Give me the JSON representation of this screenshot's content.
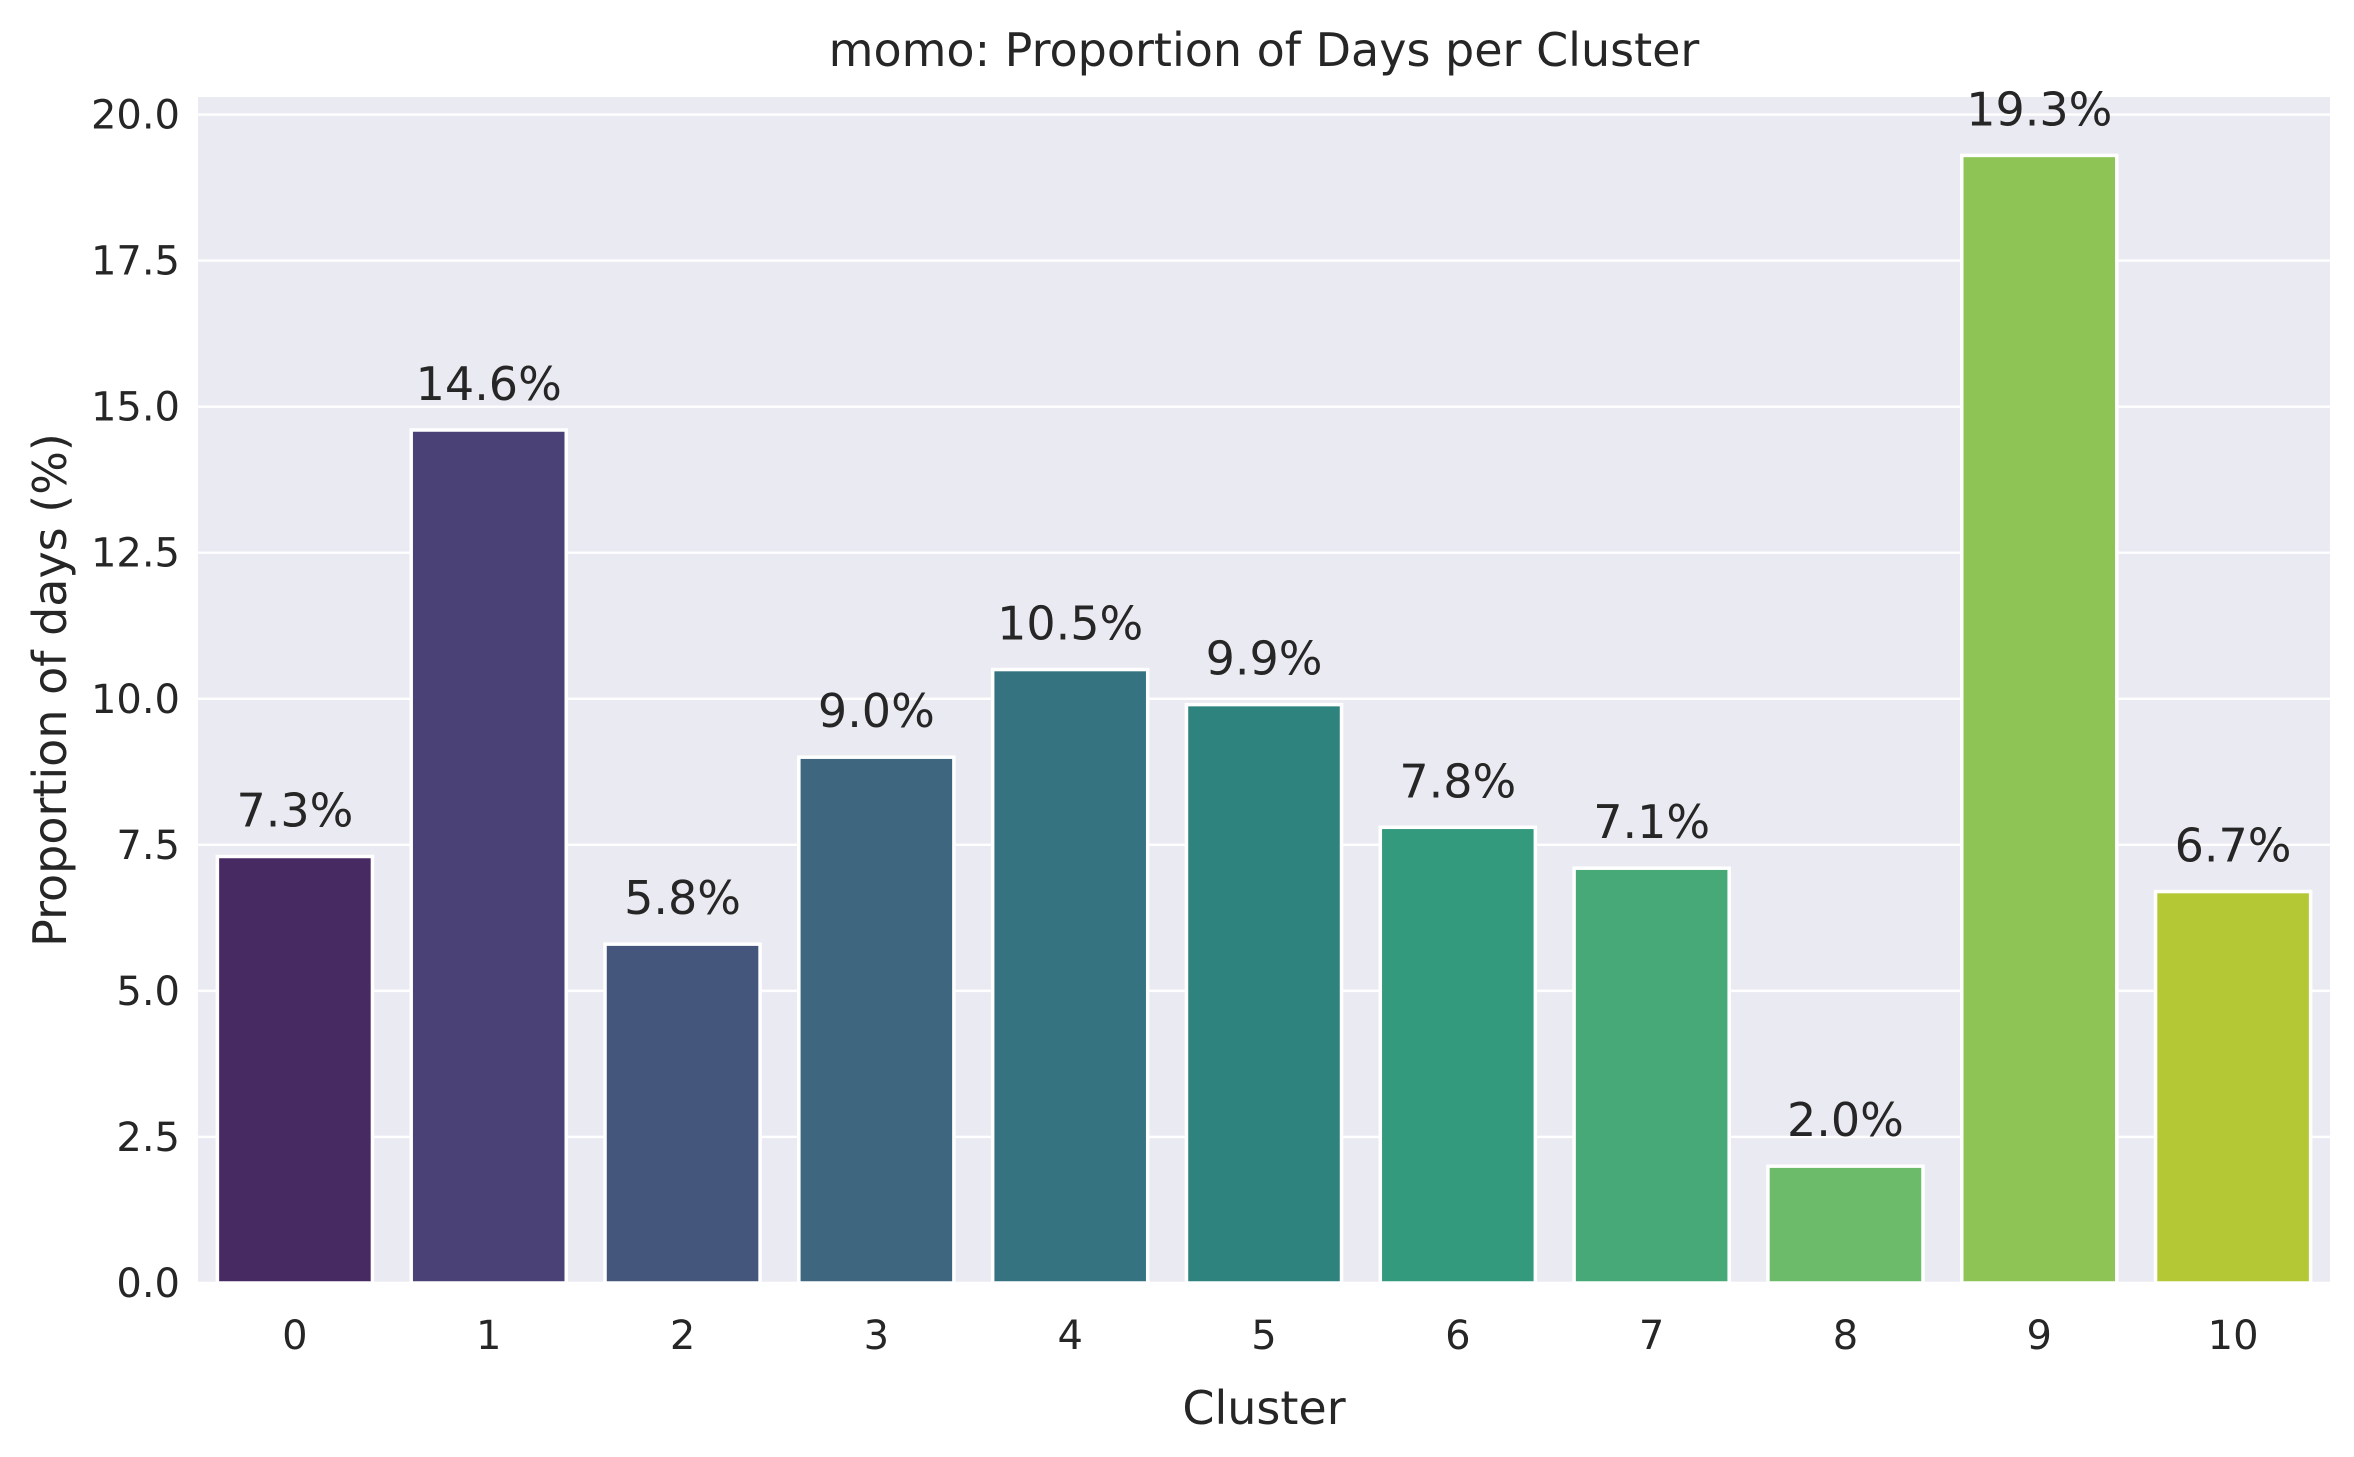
{
  "chart_data": {
    "type": "bar",
    "title": "momo: Proportion of Days per Cluster",
    "xlabel": "Cluster",
    "ylabel": "Proportion of days (%)",
    "categories": [
      "0",
      "1",
      "2",
      "3",
      "4",
      "5",
      "6",
      "7",
      "8",
      "9",
      "10"
    ],
    "values": [
      7.3,
      14.6,
      5.8,
      9.0,
      10.5,
      9.9,
      7.8,
      7.1,
      2.0,
      19.3,
      6.7
    ],
    "data_labels": [
      "7.3%",
      "14.6%",
      "5.8%",
      "9.0%",
      "10.5%",
      "9.9%",
      "7.8%",
      "7.1%",
      "2.0%",
      "19.3%",
      "6.7%"
    ],
    "ylim": [
      0,
      20.3
    ],
    "yticks": [
      0.0,
      2.5,
      5.0,
      7.5,
      10.0,
      12.5,
      15.0,
      17.5,
      20.0
    ],
    "ytick_labels": [
      "0.0",
      "2.5",
      "5.0",
      "7.5",
      "10.0",
      "12.5",
      "15.0",
      "17.5",
      "20.0"
    ],
    "grid": true,
    "legend": "none",
    "colors": [
      "#482a63",
      "#4a4277",
      "#45567d",
      "#3e667f",
      "#357381",
      "#2e837e",
      "#339a7e",
      "#47a977",
      "#6bbb6b",
      "#8dc455",
      "#b4c734"
    ],
    "background": "#eaeaf2"
  }
}
